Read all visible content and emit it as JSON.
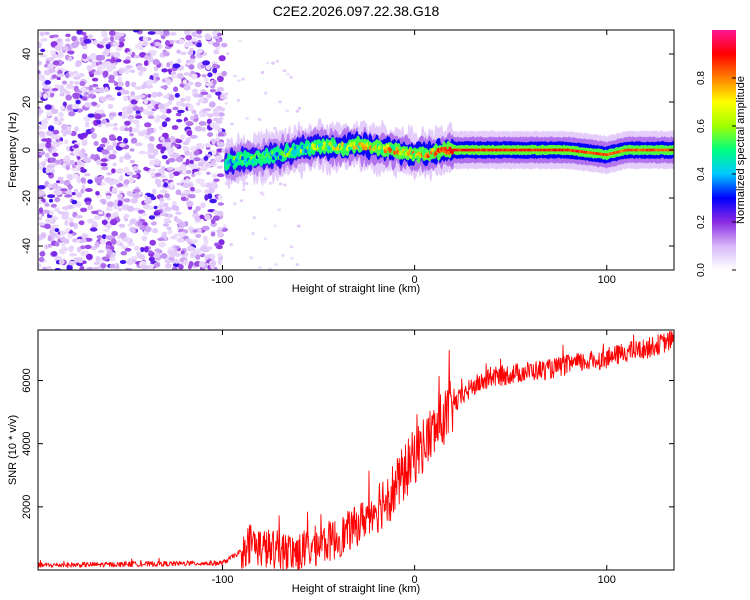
{
  "title": "C2E2.2026.097.22.38.G18",
  "chart_data": [
    {
      "type": "heatmap",
      "xlabel": "Height of straight line (km)",
      "ylabel": "Frequency (Hz)",
      "xlim": [
        -196,
        135
      ],
      "ylim": [
        -50,
        50
      ],
      "x_ticks": [
        -100,
        0,
        100
      ],
      "y_ticks": [
        -40,
        -20,
        0,
        20,
        40
      ],
      "colorbar": {
        "label": "Normalized spectral amplitude",
        "range": [
          0,
          1
        ],
        "ticks": [
          0.0,
          0.2,
          0.4,
          0.6,
          0.8
        ],
        "colormap": [
          "#ffffff",
          "#d8b8f8",
          "#8a2be2",
          "#0000ff",
          "#00c8ff",
          "#00ff80",
          "#a0ff00",
          "#ffff00",
          "#ff8000",
          "#ff0000",
          "#ff1493"
        ]
      },
      "noise_region_x": [
        -196,
        -99
      ],
      "signal_track": [
        {
          "x": -98,
          "y": -5,
          "amp": 0.55
        },
        {
          "x": -90,
          "y": -4,
          "amp": 0.6
        },
        {
          "x": -80,
          "y": -3,
          "amp": 0.55
        },
        {
          "x": -70,
          "y": -2,
          "amp": 0.6
        },
        {
          "x": -60,
          "y": 0,
          "amp": 0.6
        },
        {
          "x": -50,
          "y": 2,
          "amp": 0.7
        },
        {
          "x": -40,
          "y": 1,
          "amp": 0.75
        },
        {
          "x": -30,
          "y": 2,
          "amp": 0.8
        },
        {
          "x": -20,
          "y": 1,
          "amp": 0.85
        },
        {
          "x": -10,
          "y": 0,
          "amp": 0.85
        },
        {
          "x": 0,
          "y": -2,
          "amp": 0.85
        },
        {
          "x": 10,
          "y": -1,
          "amp": 0.85
        },
        {
          "x": 20,
          "y": 0,
          "amp": 0.9
        },
        {
          "x": 40,
          "y": 0,
          "amp": 0.9
        },
        {
          "x": 60,
          "y": 0,
          "amp": 0.9
        },
        {
          "x": 80,
          "y": 0,
          "amp": 0.9
        },
        {
          "x": 100,
          "y": -2,
          "amp": 0.85
        },
        {
          "x": 110,
          "y": 0,
          "amp": 0.85
        },
        {
          "x": 135,
          "y": 0,
          "amp": 0.85
        }
      ]
    },
    {
      "type": "line",
      "xlabel": "Height of straight line (km)",
      "ylabel": "SNR (10 * v/v)",
      "xlim": [
        -196,
        135
      ],
      "ylim": [
        0,
        7600
      ],
      "x_ticks": [
        -100,
        0,
        100
      ],
      "y_ticks": [
        2000,
        4000,
        6000
      ],
      "color": "#ff0000",
      "series": [
        {
          "x": [
            -196,
            -150,
            -100,
            -90,
            -85,
            -80,
            -70,
            -60,
            -50,
            -40,
            -30,
            -20,
            -10,
            0,
            10,
            20,
            30,
            40,
            50,
            60,
            70,
            80,
            90,
            100,
            110,
            120,
            135
          ],
          "values": [
            150,
            180,
            220,
            600,
            900,
            700,
            600,
            550,
            800,
            1000,
            1400,
            2000,
            2600,
            3600,
            4400,
            5200,
            5800,
            6100,
            6200,
            6300,
            6350,
            6500,
            6600,
            6700,
            6900,
            7000,
            7300
          ]
        }
      ]
    }
  ]
}
